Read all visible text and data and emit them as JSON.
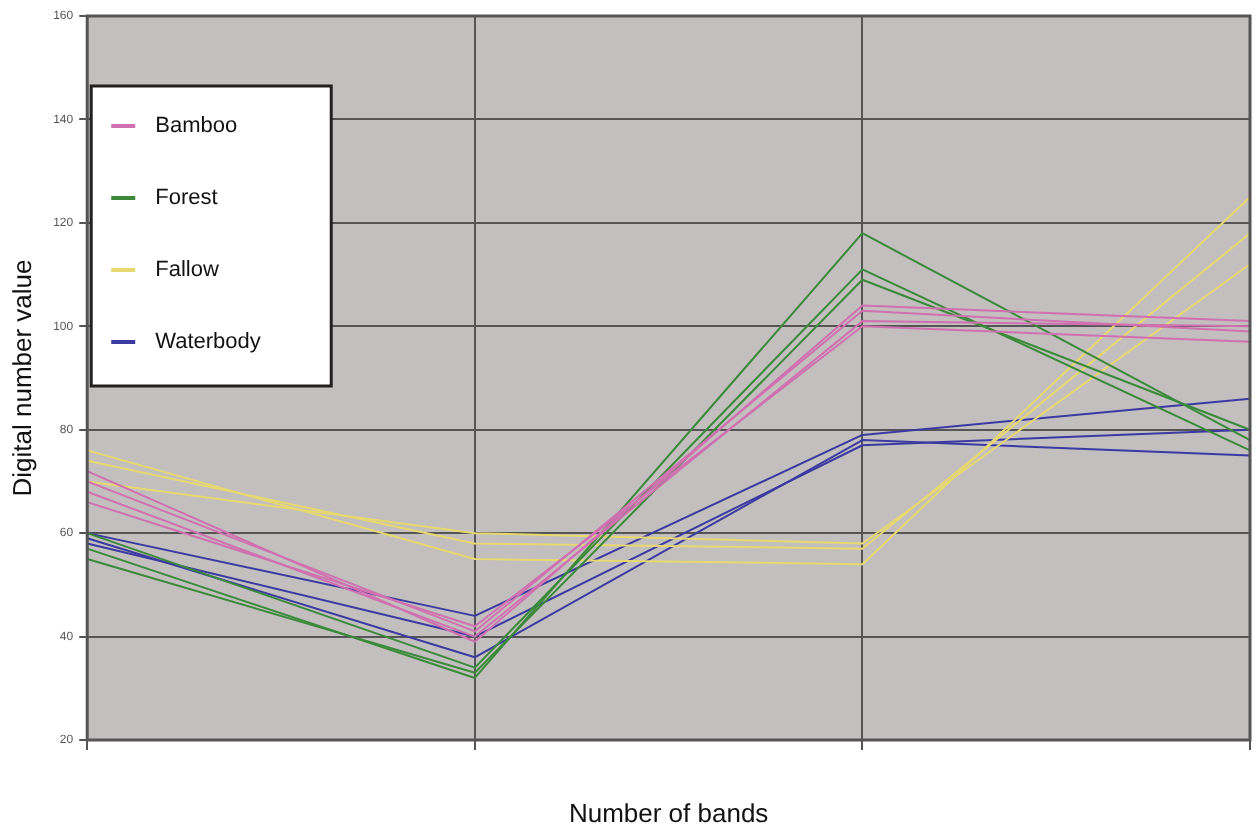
{
  "chart_data": {
    "type": "line",
    "xlabel": "Number of bands",
    "ylabel": "Digital number value",
    "categories": [
      null,
      null,
      null,
      null
    ],
    "ylim": [
      20,
      160
    ],
    "yticks": [
      20,
      40,
      60,
      80,
      100,
      120,
      140,
      160
    ],
    "grid": true,
    "legend": "top left",
    "marker": "none",
    "line_style": "solid",
    "series": [
      {
        "name": "Bamboo",
        "color": "#d070b0",
        "values": [
          70,
          41,
          103,
          99
        ]
      },
      {
        "color": "#d070b0",
        "values": [
          68,
          40,
          101,
          100
        ]
      },
      {
        "color": "#d070b0",
        "values": [
          66,
          42,
          100,
          97
        ]
      },
      {
        "color": "#d070b0",
        "values": [
          72,
          39,
          104,
          101
        ]
      },
      {
        "name": "Forest",
        "color": "#3a8a3a",
        "values": [
          57,
          32,
          118,
          78
        ]
      },
      {
        "color": "#3a8a3a",
        "values": [
          55,
          33,
          109,
          80
        ]
      },
      {
        "color": "#3a8a3a",
        "values": [
          60,
          34,
          111,
          76
        ]
      },
      {
        "name": "Fallow",
        "color": "#e8d870",
        "values": [
          74,
          58,
          57,
          118
        ]
      },
      {
        "color": "#e8d870",
        "values": [
          76,
          55,
          54,
          125
        ]
      },
      {
        "color": "#e8d870",
        "values": [
          70,
          60,
          58,
          112
        ]
      },
      {
        "name": "Waterbody",
        "color": "#3a3aa0",
        "values": [
          60,
          44,
          79,
          86
        ]
      },
      {
        "color": "#3a3aa0",
        "values": [
          59,
          36,
          78,
          75
        ]
      },
      {
        "color": "#3a3aa0",
        "values": [
          58,
          40,
          77,
          80
        ]
      }
    ]
  }
}
